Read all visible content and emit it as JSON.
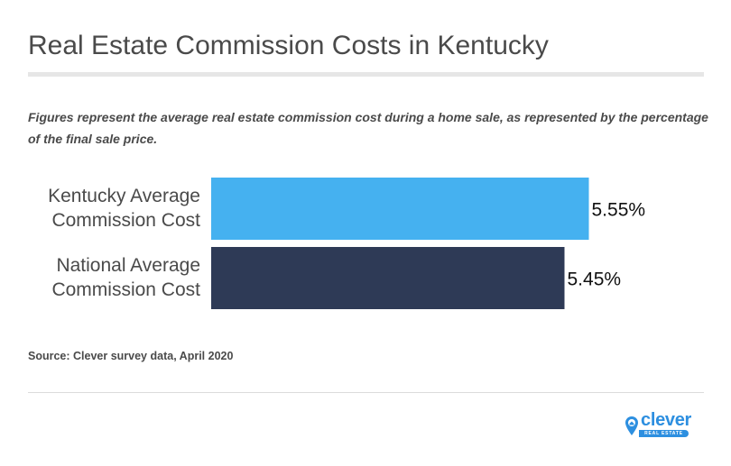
{
  "title": "Real Estate Commission Costs in Kentucky",
  "subtitle": "Figures represent the average real estate commission cost during a home sale, as represented by the percentage of the final sale price.",
  "source": "Source: Clever survey data, April 2020",
  "logo": {
    "name": "clever",
    "tagline": "REAL ESTATE",
    "color": "#2d8fe0"
  },
  "chart_data": {
    "type": "bar",
    "orientation": "horizontal",
    "categories": [
      "Kentucky Average Commission Cost",
      "National Average Commission Cost"
    ],
    "category_lines": [
      [
        "Kentucky Average",
        "Commission Cost"
      ],
      [
        "National Average",
        "Commission Cost"
      ]
    ],
    "values": [
      5.55,
      5.45
    ],
    "data_labels": [
      "5.55%",
      "5.45%"
    ],
    "colors": [
      "#45b1f0",
      "#2e3a56"
    ],
    "xlim": [
      4,
      6
    ],
    "grid": false
  }
}
